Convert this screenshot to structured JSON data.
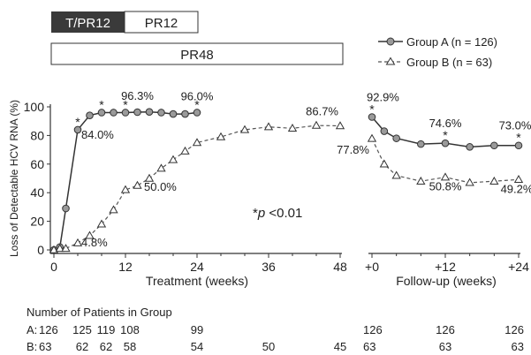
{
  "regimen_bars": {
    "tpr12": "T/PR12",
    "pr12": "PR12",
    "pr48": "PR48"
  },
  "chart_data": {
    "type": "line",
    "ylabel": "Loss of Detectable HCV RNA (%)",
    "ylim": [
      0,
      100
    ],
    "yticks": [
      "0",
      "20",
      "40",
      "60",
      "80",
      "100"
    ],
    "treatment_panel": {
      "xlabel": "Treatment (weeks)",
      "xlim": [
        0,
        48
      ],
      "xticks": [
        "0",
        "12",
        "24",
        "36",
        "48"
      ]
    },
    "followup_panel": {
      "xlabel": "Follow-up (weeks)",
      "xlim": [
        0,
        24
      ],
      "xticks": [
        "+0",
        "+12",
        "+24"
      ]
    },
    "series": [
      {
        "name": "Group A (n = 126)",
        "style": "solid-circle",
        "color": "#333333",
        "treatment": {
          "x": [
            0,
            1,
            2,
            4,
            6,
            8,
            10,
            12,
            14,
            16,
            18,
            20,
            22,
            24
          ],
          "y": [
            0,
            2,
            29,
            84.0,
            94,
            96,
            96,
            96,
            96.3,
            96.5,
            96,
            95,
            95,
            96.0
          ]
        },
        "followup": {
          "x": [
            0,
            2,
            4,
            8,
            12,
            16,
            20,
            24
          ],
          "y": [
            92.9,
            83,
            78,
            74,
            74.6,
            72,
            73,
            73.0
          ]
        }
      },
      {
        "name": "Group B (n = 63)",
        "style": "dashed-triangle",
        "color": "#555555",
        "treatment": {
          "x": [
            0,
            1,
            2,
            4,
            6,
            8,
            10,
            12,
            14,
            16,
            18,
            20,
            22,
            24,
            28,
            32,
            36,
            40,
            44,
            48
          ],
          "y": [
            0,
            1,
            1,
            4.8,
            10,
            18,
            28,
            42,
            45,
            50.0,
            57,
            63,
            69,
            75,
            79,
            84,
            86,
            85,
            87,
            86.7
          ]
        },
        "followup": {
          "x": [
            0,
            2,
            4,
            8,
            12,
            16,
            20,
            24
          ],
          "y": [
            77.8,
            60,
            52,
            48,
            50.8,
            47,
            48,
            49.2
          ]
        }
      }
    ],
    "data_labels": [
      {
        "text": "84.0%",
        "panel": "treatment",
        "x": 4,
        "y": 84.0,
        "series": "A"
      },
      {
        "text": "96.3%",
        "panel": "treatment",
        "x": 14,
        "y": 96.3,
        "series": "A"
      },
      {
        "text": "96.0%",
        "panel": "treatment",
        "x": 24,
        "y": 96.0,
        "series": "A"
      },
      {
        "text": "50.0%",
        "panel": "treatment",
        "x": 16,
        "y": 50.0,
        "series": "B"
      },
      {
        "text": "4.8%",
        "panel": "treatment",
        "x": 4,
        "y": 4.8,
        "series": "B"
      },
      {
        "text": "86.7%",
        "panel": "treatment",
        "x": 48,
        "y": 86.7,
        "series": "B"
      },
      {
        "text": "92.9%",
        "panel": "followup",
        "x": 0,
        "y": 92.9,
        "series": "A"
      },
      {
        "text": "77.8%",
        "panel": "followup",
        "x": 0,
        "y": 77.8,
        "series": "B"
      },
      {
        "text": "74.6%",
        "panel": "followup",
        "x": 12,
        "y": 74.6,
        "series": "A"
      },
      {
        "text": "73.0%",
        "panel": "followup",
        "x": 24,
        "y": 73.0,
        "series": "A"
      },
      {
        "text": "50.8%",
        "panel": "followup",
        "x": 12,
        "y": 50.8,
        "series": "B"
      },
      {
        "text": "49.2%",
        "panel": "followup",
        "x": 24,
        "y": 49.2,
        "series": "B"
      }
    ],
    "significance_markers": [
      {
        "panel": "treatment",
        "x": 4,
        "y": 84.0
      },
      {
        "panel": "treatment",
        "x": 8,
        "y": 96
      },
      {
        "panel": "treatment",
        "x": 12,
        "y": 96
      },
      {
        "panel": "treatment",
        "x": 24,
        "y": 96.0
      },
      {
        "panel": "followup",
        "x": 0,
        "y": 92.9
      },
      {
        "panel": "followup",
        "x": 12,
        "y": 74.6
      },
      {
        "panel": "followup",
        "x": 24,
        "y": 73.0
      }
    ],
    "annotation": {
      "star": "*",
      "p": "p",
      "rest": " <0.01"
    }
  },
  "patients": {
    "title": "Number of Patients in Group",
    "rows": [
      {
        "label": "A:",
        "values": [
          {
            "panel": "treatment",
            "week": 0,
            "text": "126"
          },
          {
            "panel": "treatment",
            "week": 4,
            "text": "125"
          },
          {
            "panel": "treatment",
            "week": 8,
            "text": "119"
          },
          {
            "panel": "treatment",
            "week": 12,
            "text": "108"
          },
          {
            "panel": "treatment",
            "week": 24,
            "text": "99"
          },
          {
            "panel": "followup",
            "week": 0,
            "text": "126"
          },
          {
            "panel": "followup",
            "week": 12,
            "text": "126"
          },
          {
            "panel": "followup",
            "week": 24,
            "text": "126"
          }
        ]
      },
      {
        "label": "B:",
        "values": [
          {
            "panel": "treatment",
            "week": 0,
            "text": "63"
          },
          {
            "panel": "treatment",
            "week": 4,
            "text": "62"
          },
          {
            "panel": "treatment",
            "week": 8,
            "text": "62"
          },
          {
            "panel": "treatment",
            "week": 12,
            "text": "58"
          },
          {
            "panel": "treatment",
            "week": 24,
            "text": "54"
          },
          {
            "panel": "treatment",
            "week": 36,
            "text": "50"
          },
          {
            "panel": "treatment",
            "week": 48,
            "text": "45"
          },
          {
            "panel": "followup",
            "week": 0,
            "text": "63"
          },
          {
            "panel": "followup",
            "week": 12,
            "text": "63"
          },
          {
            "panel": "followup",
            "week": 24,
            "text": "63"
          }
        ]
      }
    ]
  }
}
